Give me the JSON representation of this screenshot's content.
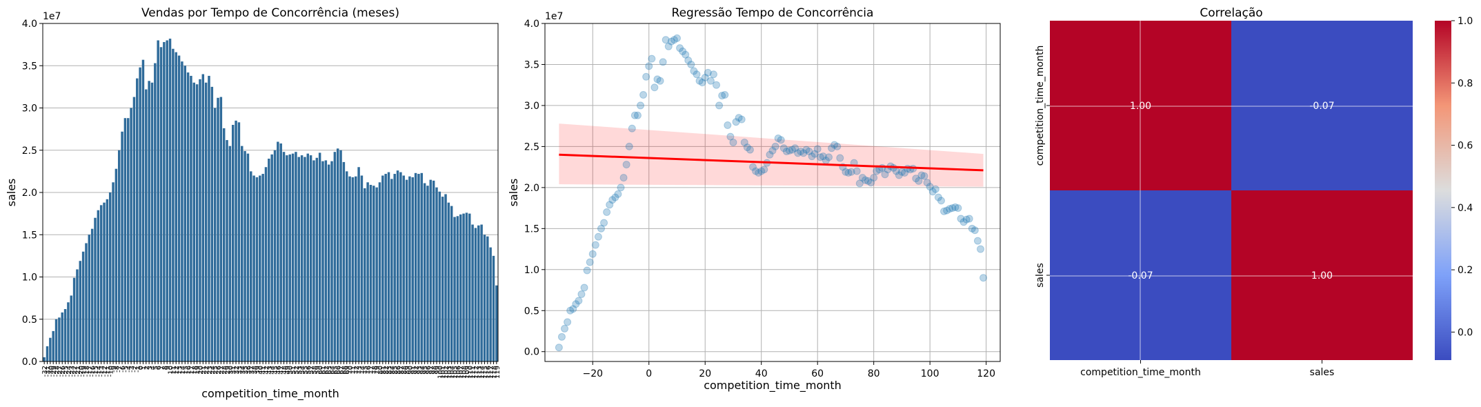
{
  "charts": {
    "bar": {
      "type": "bar",
      "title": "Vendas por Tempo de Concorrência (meses)",
      "xlabel": "competition_time_month",
      "ylabel": "sales",
      "offset_text": "1e7",
      "ylim": [
        0,
        4.0
      ],
      "yticks": [
        "0.0",
        "0.5",
        "1.0",
        "1.5",
        "2.0",
        "2.5",
        "3.0",
        "3.5",
        "4.0"
      ],
      "categories_range": [
        -32,
        119
      ],
      "values": [
        0.05,
        0.18,
        0.28,
        0.36,
        0.5,
        0.52,
        0.58,
        0.62,
        0.7,
        0.78,
        0.99,
        1.09,
        1.19,
        1.3,
        1.4,
        1.5,
        1.57,
        1.7,
        1.79,
        1.85,
        1.88,
        1.92,
        2.0,
        2.12,
        2.28,
        2.5,
        2.72,
        2.88,
        2.88,
        3.0,
        3.13,
        3.35,
        3.48,
        3.57,
        3.22,
        3.32,
        3.3,
        3.53,
        3.8,
        3.72,
        3.78,
        3.8,
        3.82,
        3.7,
        3.66,
        3.62,
        3.55,
        3.5,
        3.42,
        3.38,
        3.3,
        3.28,
        3.34,
        3.4,
        3.3,
        3.38,
        3.25,
        3.0,
        3.12,
        3.13,
        2.76,
        2.62,
        2.55,
        2.8,
        2.85,
        2.83,
        2.55,
        2.49,
        2.46,
        2.25,
        2.2,
        2.18,
        2.2,
        2.22,
        2.3,
        2.4,
        2.45,
        2.5,
        2.6,
        2.58,
        2.48,
        2.44,
        2.45,
        2.46,
        2.48,
        2.42,
        2.44,
        2.42,
        2.46,
        2.44,
        2.38,
        2.41,
        2.47,
        2.37,
        2.38,
        2.33,
        2.37,
        2.48,
        2.52,
        2.5,
        2.36,
        2.25,
        2.19,
        2.18,
        2.19,
        2.3,
        2.2,
        2.05,
        2.12,
        2.09,
        2.08,
        2.06,
        2.12,
        2.2,
        2.22,
        2.24,
        2.16,
        2.22,
        2.26,
        2.24,
        2.2,
        2.15,
        2.19,
        2.18,
        2.23,
        2.22,
        2.23,
        2.11,
        2.08,
        2.15,
        2.14,
        2.06,
        2.01,
        1.95,
        1.98,
        1.88,
        1.84,
        1.71,
        1.72,
        1.74,
        1.75,
        1.76,
        1.75,
        1.62,
        1.58,
        1.61,
        1.62,
        1.5,
        1.48,
        1.35,
        1.25,
        0.9
      ]
    },
    "regression": {
      "type": "scatter",
      "title": "Regressão Tempo de Concorrência",
      "xlabel": "competition_time_month",
      "ylabel": "sales",
      "offset_text": "1e7",
      "xlim": [
        -37,
        125
      ],
      "ylim": [
        -0.12,
        4.0
      ],
      "xticks": [
        "−20",
        "0",
        "20",
        "40",
        "60",
        "80",
        "100",
        "120"
      ],
      "yticks": [
        "0.0",
        "0.5",
        "1.0",
        "1.5",
        "2.0",
        "2.5",
        "3.0",
        "3.5",
        "4.0"
      ],
      "regression_line": {
        "x": [
          -32,
          119
        ],
        "y": [
          2.4,
          2.21
        ]
      },
      "ci_band": {
        "x": [
          -32,
          119
        ],
        "upper": [
          2.78,
          2.41
        ],
        "lower": [
          2.04,
          2.01
        ]
      }
    },
    "heatmap": {
      "type": "heatmap",
      "title": "Correlação",
      "rows": [
        "competition_time_month",
        "sales"
      ],
      "cols": [
        "competition_time_month",
        "sales"
      ],
      "values": [
        [
          1.0,
          -0.07
        ],
        [
          -0.07,
          1.0
        ]
      ],
      "labels": [
        [
          "1.00",
          "-0.07"
        ],
        [
          "-0.07",
          "1.00"
        ]
      ],
      "colorbar_ticks": [
        "1.0",
        "0.8",
        "0.6",
        "0.4",
        "0.2",
        "0.0"
      ],
      "colors": {
        "high": "#b40426",
        "low": "#3b4cc0"
      }
    }
  }
}
